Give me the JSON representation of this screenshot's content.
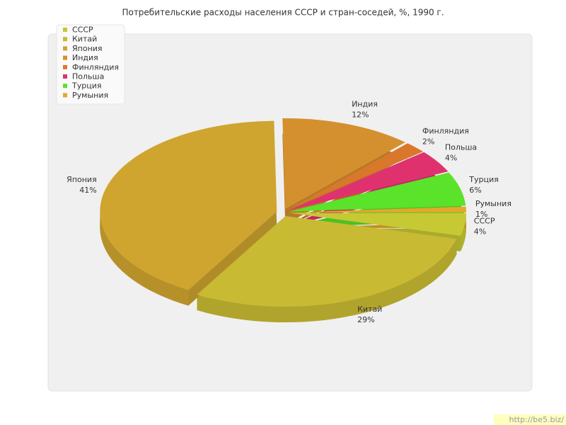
{
  "chart_data": {
    "type": "pie",
    "title": "Потребительские расходы населения СССР и стран-соседей, %, 1990 г.",
    "categories": [
      "СССР",
      "Китай",
      "Япония",
      "Индия",
      "Финляндия",
      "Польша",
      "Турция",
      "Румыния"
    ],
    "values": [
      4,
      29,
      41,
      12,
      2,
      4,
      6,
      1
    ],
    "value_labels": [
      "4%",
      "29%",
      "41%",
      "12%",
      "2%",
      "4%",
      "6%",
      "1%"
    ],
    "colors": [
      "#c6c934",
      "#c8ba33",
      "#cfa530",
      "#d4902f",
      "#d9772b",
      "#e0316f",
      "#5be22b",
      "#e2a92a"
    ],
    "legend": "top-left"
  },
  "watermark": "http://be5.biz/"
}
